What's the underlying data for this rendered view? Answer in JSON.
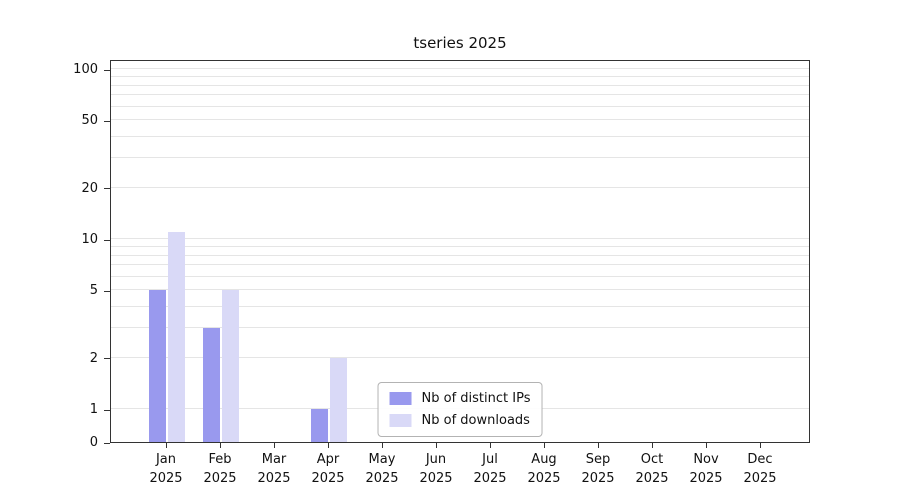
{
  "title": "tseries 2025",
  "colors": {
    "ips": "#9999ee",
    "downloads": "#d9d9f7",
    "grid": "#e5e5e5",
    "axis": "#333333",
    "background": "#ffffff"
  },
  "legend": {
    "items": [
      {
        "label": "Nb of distinct IPs",
        "color_key": "ips"
      },
      {
        "label": "Nb of downloads",
        "color_key": "downloads"
      }
    ]
  },
  "axes": {
    "grid_values": [
      1,
      2,
      3,
      4,
      5,
      6,
      7,
      8,
      9,
      10,
      20,
      30,
      40,
      50,
      60,
      70,
      80,
      90,
      100
    ]
  },
  "chart_data": {
    "type": "bar",
    "title": "tseries 2025",
    "categories": [
      "Jan",
      "Feb",
      "Mar",
      "Apr",
      "May",
      "Jun",
      "Jul",
      "Aug",
      "Sep",
      "Oct",
      "Nov",
      "Dec"
    ],
    "year": "2025",
    "series": [
      {
        "name": "Nb of distinct IPs",
        "values": [
          5,
          3,
          0,
          1,
          0,
          0,
          0,
          0,
          0,
          0,
          0,
          0
        ]
      },
      {
        "name": "Nb of downloads",
        "values": [
          11,
          5,
          0,
          2,
          0,
          0,
          0,
          0,
          0,
          0,
          0,
          0
        ]
      }
    ],
    "yscale": "symlog",
    "yticks": [
      0,
      1,
      2,
      5,
      10,
      20,
      50,
      100
    ],
    "ylim": [
      0,
      114
    ],
    "grid": "horizontal-minor-log",
    "legend_position": "lower center",
    "xlabel": "",
    "ylabel": ""
  }
}
